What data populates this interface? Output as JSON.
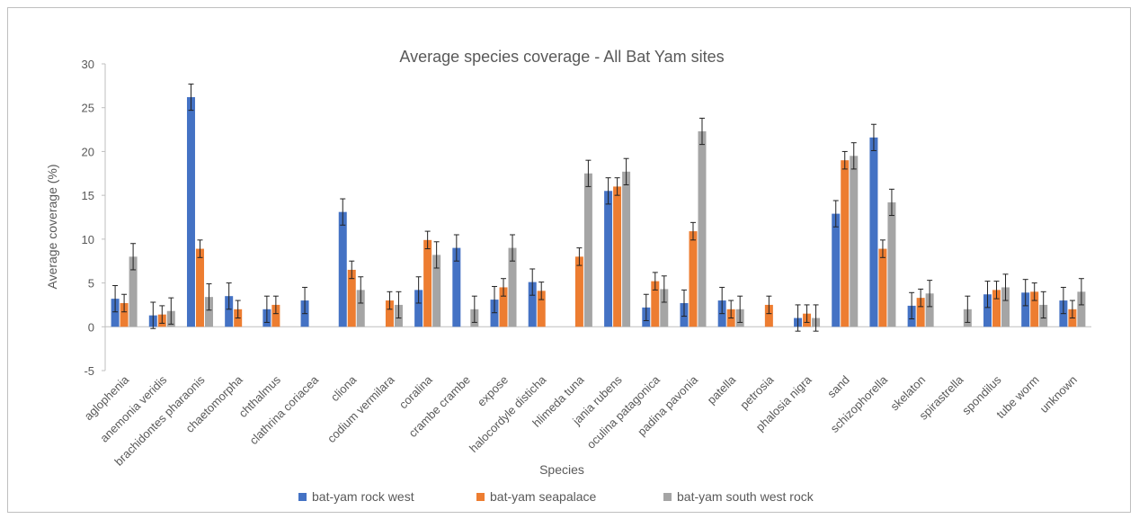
{
  "chart_data": {
    "type": "bar",
    "title": "Average species coverage - All Bat Yam sites",
    "xlabel": "Species",
    "ylabel": "Average coverage (%)",
    "ylim": [
      -5,
      30
    ],
    "yticks": [
      -5,
      0,
      5,
      10,
      15,
      20,
      25,
      30
    ],
    "grid": false,
    "legend_position": "bottom",
    "categories": [
      "aglophenia",
      "anemonia veridis",
      "brachidontes pharaonis",
      "chaetomorpha",
      "chthalmus",
      "clathrina coriacea",
      "cliona",
      "codium vermilara",
      "coralina",
      "crambe crambe",
      "expose",
      "halocordyle disticha",
      "hlimeda tuna",
      "jania rubens",
      "oculina patagonica",
      "padina pavonia",
      "patella",
      "petrosia",
      "phalosia nigra",
      "sand",
      "schizophorella",
      "skelaton",
      "spirastrella",
      "spondilus",
      "tube worm",
      "unknown"
    ],
    "series": [
      {
        "name": "bat-yam rock west",
        "color": "#4472C4",
        "values": [
          3.2,
          1.3,
          26.2,
          3.5,
          2.0,
          3.0,
          13.1,
          null,
          4.2,
          9.0,
          3.1,
          5.1,
          null,
          15.5,
          2.2,
          2.7,
          3.0,
          null,
          1.0,
          12.9,
          21.6,
          2.4,
          null,
          3.7,
          3.9,
          3.0
        ],
        "errors": [
          1.5,
          1.5,
          1.5,
          1.5,
          1.5,
          1.5,
          1.5,
          null,
          1.5,
          1.5,
          1.5,
          1.5,
          null,
          1.5,
          1.5,
          1.5,
          1.5,
          null,
          1.5,
          1.5,
          1.5,
          1.5,
          null,
          1.5,
          1.5,
          1.5
        ]
      },
      {
        "name": "bat-yam seapalace",
        "color": "#ED7D31",
        "values": [
          2.7,
          1.4,
          8.9,
          2.0,
          2.5,
          null,
          6.5,
          3.0,
          9.9,
          null,
          4.5,
          4.1,
          8.0,
          16.0,
          5.2,
          10.9,
          2.0,
          2.5,
          1.5,
          19.0,
          8.9,
          3.3,
          null,
          4.2,
          4.0,
          2.0
        ],
        "errors": [
          1.0,
          1.0,
          1.0,
          1.0,
          1.0,
          null,
          1.0,
          1.0,
          1.0,
          null,
          1.0,
          1.0,
          1.0,
          1.0,
          1.0,
          1.0,
          1.0,
          1.0,
          1.0,
          1.0,
          1.0,
          1.0,
          null,
          1.0,
          1.0,
          1.0
        ]
      },
      {
        "name": "bat-yam south west rock",
        "color": "#A5A5A5",
        "values": [
          8.0,
          1.8,
          3.4,
          null,
          null,
          null,
          4.2,
          2.5,
          8.2,
          2.0,
          9.0,
          null,
          17.5,
          17.7,
          4.3,
          22.3,
          2.0,
          null,
          1.0,
          19.5,
          14.2,
          3.8,
          2.0,
          4.5,
          2.5,
          4.0
        ],
        "errors": [
          1.5,
          1.5,
          1.5,
          null,
          null,
          null,
          1.5,
          1.5,
          1.5,
          1.5,
          1.5,
          null,
          1.5,
          1.5,
          1.5,
          1.5,
          1.5,
          null,
          1.5,
          1.5,
          1.5,
          1.5,
          1.5,
          1.5,
          1.5,
          1.5
        ]
      }
    ]
  }
}
